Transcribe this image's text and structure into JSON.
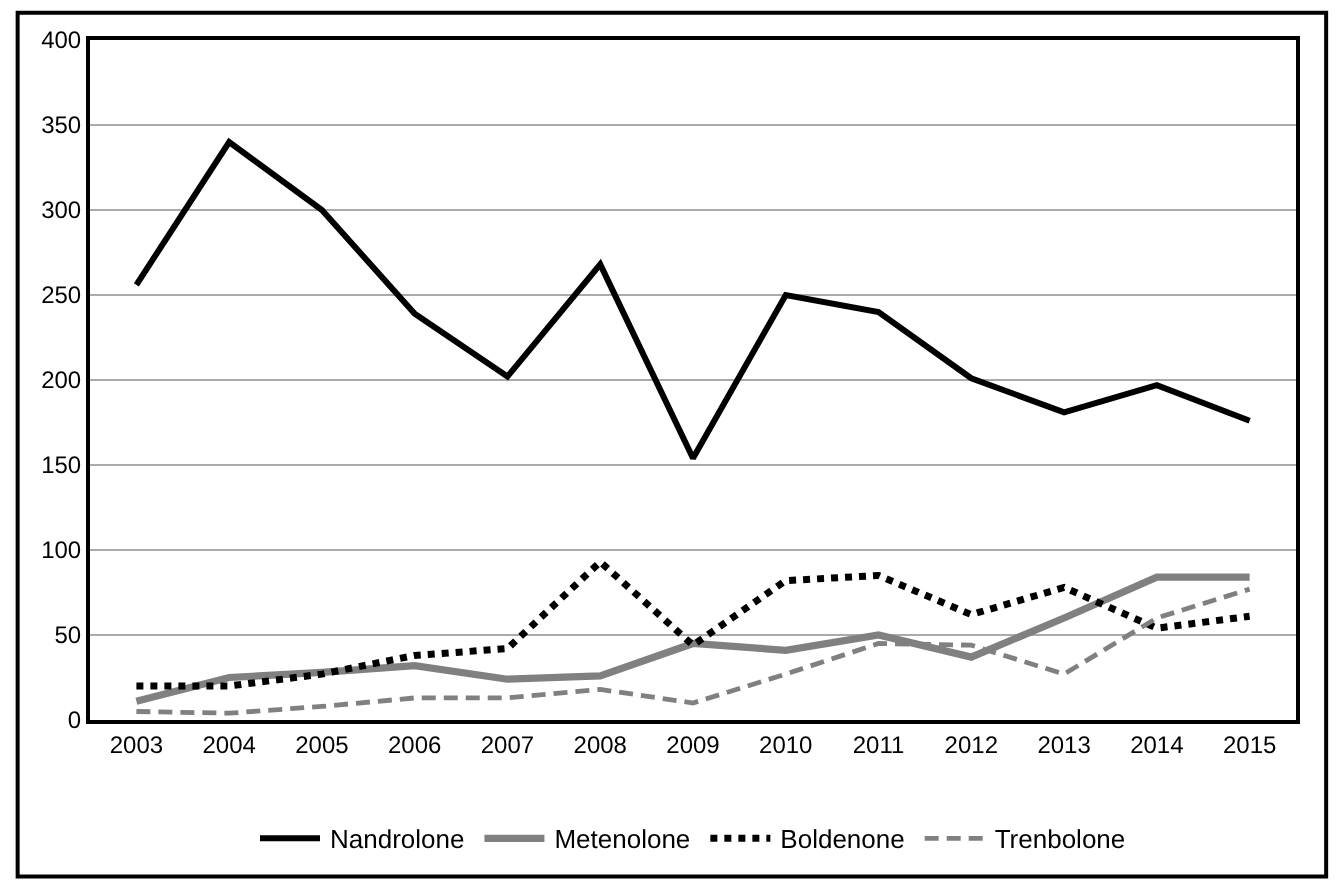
{
  "chart_data": {
    "type": "line",
    "categories": [
      "2003",
      "2004",
      "2005",
      "2006",
      "2007",
      "2008",
      "2009",
      "2010",
      "2011",
      "2012",
      "2013",
      "2014",
      "2015"
    ],
    "series": [
      {
        "name": "Nandrolone",
        "color": "#000000",
        "line_style": "solid",
        "values": [
          256,
          340,
          300,
          239,
          202,
          268,
          154,
          250,
          240,
          201,
          181,
          197,
          176
        ]
      },
      {
        "name": "Metenolone",
        "color": "#808080",
        "line_style": "solid",
        "values": [
          11,
          25,
          28,
          32,
          24,
          26,
          45,
          41,
          50,
          37,
          60,
          84,
          84
        ]
      },
      {
        "name": "Boldenone",
        "color": "#000000",
        "line_style": "dotted",
        "values": [
          20,
          20,
          27,
          38,
          42,
          93,
          44,
          82,
          85,
          62,
          78,
          54,
          61
        ]
      },
      {
        "name": "Trenbolone",
        "color": "#808080",
        "line_style": "dashed",
        "values": [
          5,
          4,
          8,
          13,
          13,
          18,
          10,
          27,
          45,
          44,
          27,
          60,
          77
        ]
      }
    ],
    "ylim": [
      0,
      400
    ],
    "yticks": [
      0,
      50,
      100,
      150,
      200,
      250,
      300,
      350,
      400
    ],
    "grid": "y",
    "legend": "bottom",
    "marker": "none"
  }
}
